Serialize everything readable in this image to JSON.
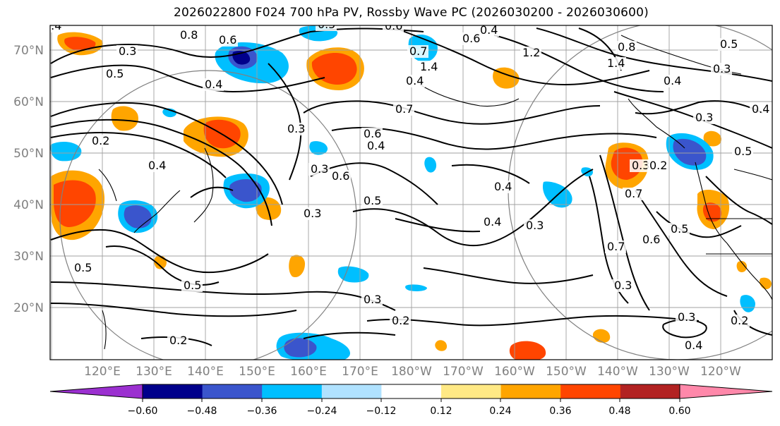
{
  "title": "2026022800 F024 700 hPa PV, Rossby Wave PC (2026030200 - 2026030600)",
  "lat_labels": [
    "70°N",
    "60°N",
    "50°N",
    "40°N",
    "30°N",
    "20°N"
  ],
  "lon_labels": [
    "120°E",
    "130°E",
    "140°E",
    "150°E",
    "160°E",
    "170°E",
    "180°W",
    "170°W",
    "160°W",
    "150°W",
    "140°W",
    "130°W",
    "120°W"
  ],
  "colorbar": {
    "colors": [
      "#9b30d0",
      "#00008b",
      "#3a55cc",
      "#00bfff",
      "#b0e2ff",
      "#ffffff",
      "#ffe985",
      "#ffa500",
      "#ff4500",
      "#b22222",
      "#ff88aa"
    ],
    "ticks": [
      "−0.60",
      "−0.48",
      "−0.36",
      "−0.24",
      "−0.12",
      "0.12",
      "0.24",
      "0.36",
      "0.48",
      "0.60"
    ]
  },
  "contour_labels": [
    "0.8",
    "0.4",
    "0.5",
    "0.6",
    "0.7",
    "0.4",
    "0.4",
    "0.6",
    "0.6",
    "0.5",
    "0.4",
    "0.3",
    "1.4",
    "1.2",
    "1.4",
    "0.8",
    "0.5",
    "0.3",
    "0.4",
    "0.3",
    "0.4",
    "0.5",
    "0.3",
    "0.2",
    "0.7",
    "0.5",
    "0.6",
    "0.7",
    "0.4",
    "0.3",
    "0.3",
    "0.4",
    "0.3",
    "0.2",
    "0.4",
    "0.6",
    "0.5",
    "0.4",
    "0.3",
    "0.5",
    "0.5",
    "0.3",
    "0.2",
    "0.2",
    "0.7",
    "0.6",
    "0.4",
    "0.2",
    "0.3",
    "0.3"
  ],
  "map_colors": {
    "contour": "#000000",
    "grid": "#a0a0a0",
    "circle": "#808080",
    "coast": "#000000"
  }
}
